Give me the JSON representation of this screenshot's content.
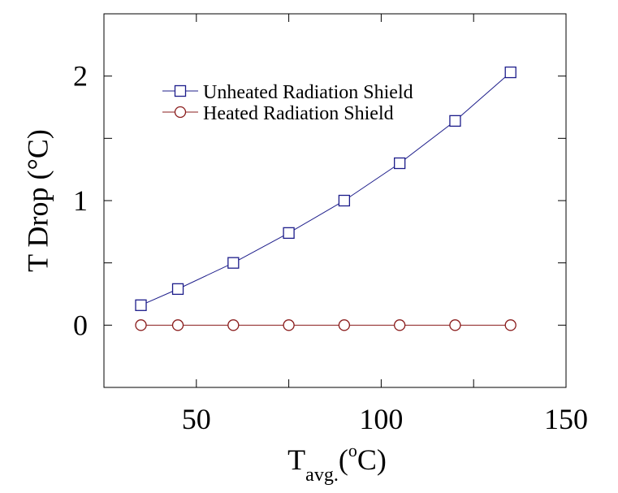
{
  "chart_data": {
    "type": "line",
    "x_label": {
      "base": "T",
      "subscript": "avg.",
      "open": "(",
      "superscript": "o",
      "close": "C)"
    },
    "y_label": "T Drop (°C)",
    "x": [
      35,
      45,
      60,
      75,
      90,
      105,
      120,
      135
    ],
    "series": [
      {
        "name": "Unheated Radiation Shield",
        "color": "#1c1c8a",
        "marker": "square",
        "values": [
          0.16,
          0.29,
          0.5,
          0.74,
          1.0,
          1.3,
          1.64,
          2.03
        ]
      },
      {
        "name": "Heated Radiation Shield",
        "color": "#8a1c1c",
        "marker": "circle",
        "values": [
          0,
          0,
          0,
          0,
          0,
          0,
          0,
          0
        ]
      }
    ],
    "xlim": [
      25,
      150
    ],
    "xticks": [
      50,
      100,
      150
    ],
    "xminorticks": [
      75,
      125
    ],
    "ylim": [
      -0.5,
      2.5
    ],
    "yticks": [
      0,
      1,
      2
    ],
    "yminorticks": [
      0.5,
      1.5
    ],
    "legend": "upper-left",
    "grid": false
  }
}
